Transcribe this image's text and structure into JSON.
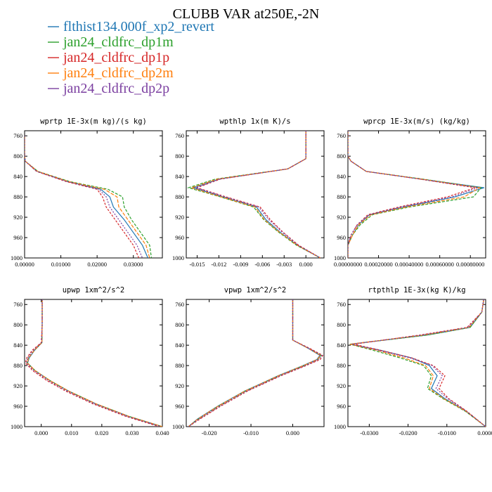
{
  "figure": {
    "title": "CLUBB VAR at250E,-2N"
  },
  "legend": [
    {
      "label": "flthist134.000f_xp2_revert",
      "color": "#1f77b4"
    },
    {
      "label": "jan24_cldfrc_dp1m",
      "color": "#2ca02c"
    },
    {
      "label": "jan24_cldfrc_dp1p",
      "color": "#d62728"
    },
    {
      "label": "jan24_cldfrc_dp2m",
      "color": "#ff7f0e"
    },
    {
      "label": "jan24_cldfrc_dp2p",
      "color": "#7b3fa0"
    }
  ],
  "chart_data": [
    {
      "type": "line",
      "title": "wprtp  1E-3x(m kg)/(s kg)",
      "xlim": [
        0.0,
        0.038
      ],
      "ylim": [
        1000,
        750
      ],
      "xticks": [
        0.0,
        0.01,
        0.02,
        0.03
      ],
      "xtick_labels": [
        "0.00000",
        "0.01000",
        "0.02000",
        "0.03000"
      ],
      "yticks": [
        760,
        800,
        840,
        880,
        920,
        960,
        1000
      ],
      "y": [
        760,
        800,
        810,
        830,
        850,
        865,
        880,
        900,
        925,
        950,
        975,
        1000
      ],
      "series": [
        {
          "name": "flthist134.000f_xp2_revert",
          "x": [
            0,
            0,
            0.0002,
            0.0035,
            0.012,
            0.021,
            0.0235,
            0.0245,
            0.0275,
            0.03,
            0.0325,
            0.034
          ]
        },
        {
          "name": "jan24_cldfrc_dp1m",
          "x": [
            0,
            0,
            0.0002,
            0.0037,
            0.0125,
            0.023,
            0.027,
            0.0275,
            0.0295,
            0.032,
            0.0345,
            0.035
          ]
        },
        {
          "name": "jan24_cldfrc_dp1p",
          "x": [
            0,
            0,
            0.0002,
            0.0033,
            0.0115,
            0.02,
            0.0215,
            0.0225,
            0.025,
            0.0275,
            0.03,
            0.0315
          ]
        },
        {
          "name": "jan24_cldfrc_dp2m",
          "x": [
            0,
            0,
            0.0002,
            0.0036,
            0.0122,
            0.022,
            0.0255,
            0.026,
            0.0285,
            0.031,
            0.0335,
            0.0345
          ]
        },
        {
          "name": "jan24_cldfrc_dp2p",
          "x": [
            0,
            0,
            0.0002,
            0.0034,
            0.0118,
            0.0205,
            0.0225,
            0.0235,
            0.026,
            0.0285,
            0.031,
            0.0325
          ]
        }
      ]
    },
    {
      "type": "line",
      "title": "wpthlp  1x(m K)/s",
      "xlim": [
        -0.0165,
        0.0025
      ],
      "ylim": [
        1000,
        750
      ],
      "xticks": [
        -0.015,
        -0.012,
        -0.009,
        -0.006,
        -0.003,
        0.0
      ],
      "xtick_labels": [
        "-0.015",
        "-0.012",
        "-0.009",
        "-0.006",
        "-0.003",
        "0.000"
      ],
      "yticks": [
        760,
        800,
        840,
        880,
        920,
        960,
        1000
      ],
      "y": [
        750,
        780,
        805,
        825,
        845,
        862,
        880,
        900,
        925,
        950,
        975,
        1000
      ],
      "series": [
        {
          "name": "flthist134.000f_xp2_revert",
          "x": [
            0.0,
            0.0,
            0.0,
            -0.0025,
            -0.012,
            -0.0155,
            -0.0115,
            -0.0068,
            -0.0055,
            -0.0035,
            -0.0012,
            0.002
          ]
        },
        {
          "name": "jan24_cldfrc_dp1m",
          "x": [
            0.0,
            0.0,
            0.0,
            -0.0025,
            -0.0125,
            -0.0162,
            -0.0118,
            -0.0072,
            -0.0058,
            -0.0037,
            -0.0013,
            0.002
          ]
        },
        {
          "name": "jan24_cldfrc_dp1p",
          "x": [
            0.0,
            0.0,
            0.0,
            -0.0025,
            -0.0118,
            -0.015,
            -0.011,
            -0.0063,
            -0.0049,
            -0.0031,
            -0.001,
            0.002
          ]
        },
        {
          "name": "jan24_cldfrc_dp2m",
          "x": [
            0.0,
            0.0,
            0.0,
            -0.0025,
            -0.0122,
            -0.0158,
            -0.0117,
            -0.007,
            -0.0057,
            -0.0036,
            -0.0012,
            0.002
          ]
        },
        {
          "name": "jan24_cldfrc_dp2p",
          "x": [
            0.0,
            0.0,
            0.0,
            -0.0025,
            -0.0119,
            -0.0152,
            -0.0112,
            -0.0065,
            -0.0051,
            -0.0032,
            -0.0011,
            0.002
          ]
        }
      ]
    },
    {
      "type": "line",
      "title": "wprcp  1E-3x(m/s) (kg/kg)",
      "xlim": [
        0.0,
        0.0009
      ],
      "ylim": [
        1000,
        750
      ],
      "xticks": [
        0.0,
        0.0002,
        0.0004,
        0.0006,
        0.0008
      ],
      "xtick_labels": [
        "0.00000000",
        "0.00020000",
        "0.00040000",
        "0.00060000",
        "0.00080000"
      ],
      "yticks": [
        760,
        800,
        840,
        880,
        920,
        960,
        1000
      ],
      "y": [
        750,
        800,
        810,
        830,
        845,
        862,
        880,
        900,
        915,
        935,
        955,
        975,
        1000
      ],
      "series": [
        {
          "name": "flthist134.000f_xp2_revert",
          "x": [
            0,
            0,
            2e-05,
            0.00012,
            0.00048,
            0.00089,
            0.0007,
            0.00036,
            0.00014,
            7e-05,
            3e-05,
            0.0,
            0.0
          ]
        },
        {
          "name": "jan24_cldfrc_dp1m",
          "x": [
            0,
            0,
            2e-05,
            0.00012,
            0.00049,
            0.00087,
            0.00082,
            0.0004,
            0.00016,
            8e-05,
            3e-05,
            0.0,
            0.0
          ]
        },
        {
          "name": "jan24_cldfrc_dp1p",
          "x": [
            0,
            0,
            2e-05,
            0.00012,
            0.00047,
            0.00083,
            0.00065,
            0.00033,
            0.00013,
            6e-05,
            2e-05,
            0.0,
            0.0
          ]
        },
        {
          "name": "jan24_cldfrc_dp2m",
          "x": [
            0,
            0,
            2e-05,
            0.00012,
            0.00048,
            0.00086,
            0.00076,
            0.00038,
            0.00015,
            7e-05,
            3e-05,
            0.0,
            0.0
          ]
        },
        {
          "name": "jan24_cldfrc_dp2p",
          "x": [
            0,
            0,
            2e-05,
            0.00012,
            0.00047,
            0.00085,
            0.00068,
            0.00035,
            0.00014,
            6e-05,
            2e-05,
            0.0,
            0.0
          ]
        }
      ]
    },
    {
      "type": "line",
      "title": "upwp  1xm^2/s^2",
      "xlim": [
        -0.0055,
        0.04
      ],
      "ylim": [
        1000,
        750
      ],
      "xticks": [
        0.0,
        0.01,
        0.02,
        0.03,
        0.04
      ],
      "xtick_labels": [
        "0.000",
        "0.010",
        "0.020",
        "0.030",
        "0.040"
      ],
      "yticks": [
        760,
        800,
        840,
        880,
        920,
        960,
        1000
      ],
      "y": [
        750,
        800,
        835,
        850,
        865,
        875,
        890,
        910,
        930,
        955,
        980,
        1000
      ],
      "series": [
        {
          "name": "flthist134.000f_xp2_revert",
          "x": [
            0.0003,
            0.0003,
            0.0002,
            -0.0022,
            -0.004,
            -0.0045,
            -0.002,
            0.003,
            0.009,
            0.018,
            0.029,
            0.04
          ]
        },
        {
          "name": "jan24_cldfrc_dp1m",
          "x": [
            0.0003,
            0.0003,
            0.0002,
            -0.0023,
            -0.0042,
            -0.0046,
            -0.002,
            0.003,
            0.009,
            0.018,
            0.029,
            0.04
          ]
        },
        {
          "name": "jan24_cldfrc_dp1p",
          "x": [
            0.0003,
            0.0003,
            0.0,
            -0.003,
            -0.0048,
            -0.0052,
            -0.0028,
            0.002,
            0.008,
            0.017,
            0.028,
            0.039
          ]
        },
        {
          "name": "jan24_cldfrc_dp2m",
          "x": [
            0.0003,
            0.0003,
            0.0002,
            -0.0023,
            -0.0042,
            -0.0046,
            -0.002,
            0.003,
            0.009,
            0.018,
            0.029,
            0.04
          ]
        },
        {
          "name": "jan24_cldfrc_dp2p",
          "x": [
            0.0003,
            0.0003,
            0.0001,
            -0.0026,
            -0.0045,
            -0.0049,
            -0.0024,
            0.0025,
            0.0085,
            0.0175,
            0.0285,
            0.0395
          ]
        }
      ]
    },
    {
      "type": "line",
      "title": "vpwp  1xm^2/s^2",
      "xlim": [
        -0.0255,
        0.0075
      ],
      "ylim": [
        1000,
        750
      ],
      "xticks": [
        -0.02,
        -0.01,
        0.0
      ],
      "xtick_labels": [
        "-0.020",
        "-0.010",
        "0.000"
      ],
      "yticks": [
        760,
        800,
        840,
        880,
        920,
        960,
        1000
      ],
      "y": [
        750,
        800,
        830,
        845,
        860,
        868,
        880,
        900,
        930,
        960,
        985,
        1000
      ],
      "series": [
        {
          "name": "flthist134.000f_xp2_revert",
          "x": [
            0.0,
            0.0,
            0.0,
            0.0035,
            0.0065,
            0.0058,
            0.0025,
            -0.0035,
            -0.0115,
            -0.018,
            -0.0228,
            -0.025
          ]
        },
        {
          "name": "jan24_cldfrc_dp1m",
          "x": [
            0.0,
            0.0,
            0.0,
            0.0035,
            0.0068,
            0.006,
            0.0027,
            -0.0033,
            -0.0113,
            -0.0178,
            -0.0226,
            -0.025
          ]
        },
        {
          "name": "jan24_cldfrc_dp1p",
          "x": [
            0.0,
            0.0,
            0.0,
            0.0038,
            0.0072,
            0.0066,
            0.0032,
            -0.0028,
            -0.0108,
            -0.0173,
            -0.0222,
            -0.025
          ]
        },
        {
          "name": "jan24_cldfrc_dp2m",
          "x": [
            0.0,
            0.0,
            0.0,
            0.0035,
            0.0067,
            0.0059,
            0.0026,
            -0.0034,
            -0.0114,
            -0.0179,
            -0.0227,
            -0.025
          ]
        },
        {
          "name": "jan24_cldfrc_dp2p",
          "x": [
            0.0,
            0.0,
            0.0,
            0.0036,
            0.007,
            0.0062,
            0.003,
            -0.003,
            -0.011,
            -0.0175,
            -0.0224,
            -0.025
          ]
        }
      ]
    },
    {
      "type": "line",
      "title": "rtpthlp  1E-3x(kg K)/kg",
      "xlim": [
        -0.0355,
        0.0
      ],
      "ylim": [
        1000,
        750
      ],
      "xticks": [
        -0.03,
        -0.02,
        -0.01,
        0.0
      ],
      "xtick_labels": [
        "-0.0300",
        "-0.0200",
        "-0.0100",
        "0.0000"
      ],
      "yticks": [
        760,
        800,
        840,
        880,
        920,
        960,
        1000
      ],
      "y": [
        750,
        775,
        805,
        820,
        838,
        850,
        865,
        880,
        900,
        925,
        945,
        970,
        1000
      ],
      "series": [
        {
          "name": "flthist134.000f_xp2_revert",
          "x": [
            -0.0005,
            -0.001,
            -0.004,
            -0.015,
            -0.035,
            -0.027,
            -0.019,
            -0.0145,
            -0.0125,
            -0.014,
            -0.0105,
            -0.005,
            0.0
          ]
        },
        {
          "name": "jan24_cldfrc_dp1m",
          "x": [
            -0.0005,
            -0.001,
            -0.004,
            -0.015,
            -0.035,
            -0.029,
            -0.022,
            -0.016,
            -0.014,
            -0.015,
            -0.011,
            -0.0052,
            0.0
          ]
        },
        {
          "name": "jan24_cldfrc_dp1p",
          "x": [
            -0.0005,
            -0.001,
            -0.0048,
            -0.017,
            -0.034,
            -0.027,
            -0.019,
            -0.0135,
            -0.0105,
            -0.012,
            -0.0095,
            -0.0048,
            0.0
          ]
        },
        {
          "name": "jan24_cldfrc_dp2m",
          "x": [
            -0.0005,
            -0.001,
            -0.0043,
            -0.016,
            -0.035,
            -0.028,
            -0.021,
            -0.0155,
            -0.0135,
            -0.0145,
            -0.0108,
            -0.005,
            0.0
          ]
        },
        {
          "name": "jan24_cldfrc_dp2p",
          "x": [
            -0.0005,
            -0.001,
            -0.0045,
            -0.0165,
            -0.0345,
            -0.0275,
            -0.0195,
            -0.0138,
            -0.0112,
            -0.0128,
            -0.0098,
            -0.0049,
            0.0
          ]
        }
      ]
    }
  ]
}
